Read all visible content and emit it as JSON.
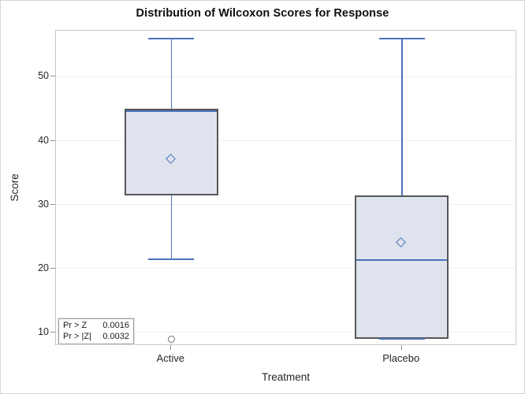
{
  "chart_data": {
    "type": "box",
    "title": "Distribution of Wilcoxon Scores for Response",
    "xlabel": "Treatment",
    "ylabel": "Score",
    "categories": [
      "Active",
      "Placebo"
    ],
    "yticks": [
      10,
      20,
      30,
      40,
      50
    ],
    "ylim": [
      7.9,
      57.2
    ],
    "grid": true,
    "legend_position": "none",
    "series": [
      {
        "category": "Active",
        "whisker_low": 21.5,
        "q1": 31.5,
        "median": 45,
        "q3": 45,
        "whisker_high": 56,
        "mean": 37,
        "outliers": [
          9
        ]
      },
      {
        "category": "Placebo",
        "whisker_low": 9,
        "q1": 9,
        "median": 21.5,
        "q3": 31.5,
        "whisker_high": 56,
        "mean": 24,
        "outliers": []
      }
    ],
    "pvalue_table": {
      "rows": [
        {
          "label": "Pr > Z",
          "value": "0.0016"
        },
        {
          "label": "Pr > |Z|",
          "value": "0.0032"
        }
      ]
    },
    "colors": {
      "line_blue": "#4c72b9",
      "box_fill": "#dee3ed",
      "box_border": "#575757",
      "outlier": "#707070",
      "gridline": "#f0f0f0",
      "frame": "#c3c7cc",
      "tick": "#8f9398",
      "text": "#262626"
    }
  }
}
